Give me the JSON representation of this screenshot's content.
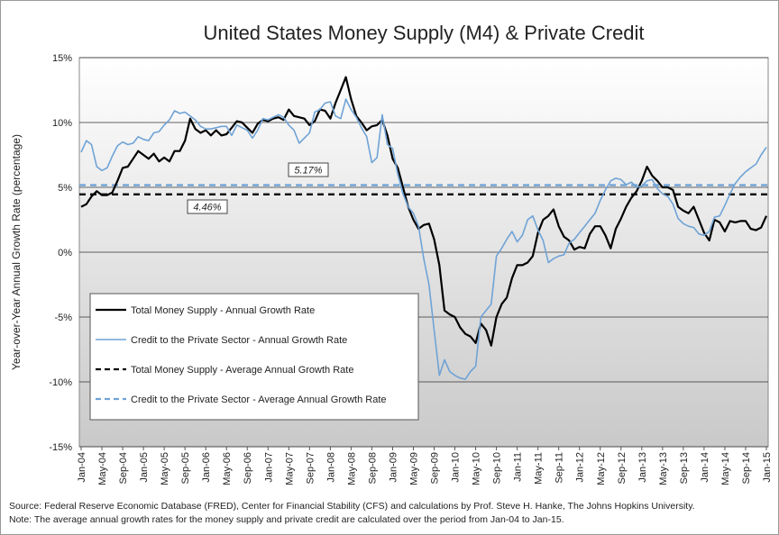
{
  "chart_data": {
    "type": "line",
    "title": "United States Money Supply (M4) & Private Credit",
    "y_label": "Year-over-Year Annual Growth Rate (percentage)",
    "notes": [
      "Source: Federal Reserve Economic Database (FRED), Center for Financial Stability (CFS) and calculations by Prof. Steve H. Hanke, The Johns Hopkins University.",
      "Note: The average annual growth rates for the money supply and private credit are calculated over the period from Jan-04 to Jan-15."
    ],
    "categories": [
      "Jan-04",
      null,
      null,
      null,
      "May-04",
      null,
      null,
      null,
      "Sep-04",
      null,
      null,
      null,
      "Jan-05",
      null,
      null,
      null,
      "May-05",
      null,
      null,
      null,
      "Sep-05",
      null,
      null,
      null,
      "Jan-06",
      null,
      null,
      null,
      "May-06",
      null,
      null,
      null,
      "Sep-06",
      null,
      null,
      null,
      "Jan-07",
      null,
      null,
      null,
      "May-07",
      null,
      null,
      null,
      "Sep-07",
      null,
      null,
      null,
      "Jan-08",
      null,
      null,
      null,
      "May-08",
      null,
      null,
      null,
      "Sep-08",
      null,
      null,
      null,
      "Jan-09",
      null,
      null,
      null,
      "May-09",
      null,
      null,
      null,
      "Sep-09",
      null,
      null,
      null,
      "Jan-10",
      null,
      null,
      null,
      "May-10",
      null,
      null,
      null,
      "Sep-10",
      null,
      null,
      null,
      "Jan-11",
      null,
      null,
      null,
      "May-11",
      null,
      null,
      null,
      "Sep-11",
      null,
      null,
      null,
      "Jan-12",
      null,
      null,
      null,
      "May-12",
      null,
      null,
      null,
      "Sep-12",
      null,
      null,
      null,
      "Jan-13",
      null,
      null,
      null,
      "May-13",
      null,
      null,
      null,
      "Sep-13",
      null,
      null,
      null,
      "Jan-14",
      null,
      null,
      null,
      "May-14",
      null,
      null,
      null,
      "Sep-14",
      null,
      null,
      null,
      "Jan-15"
    ],
    "series": [
      {
        "name": "Total Money Supply - Annual Growth Rate",
        "color": "#000000",
        "width": 2.2,
        "values": [
          3.5,
          3.7,
          4.3,
          4.7,
          4.4,
          4.4,
          4.6,
          5.5,
          6.5,
          6.6,
          7.2,
          7.8,
          7.5,
          7.2,
          7.6,
          7.0,
          7.3,
          7.0,
          7.8,
          7.8,
          8.6,
          10.3,
          9.5,
          9.2,
          9.4,
          9.0,
          9.4,
          9.0,
          9.1,
          9.6,
          10.1,
          10.0,
          9.6,
          9.2,
          9.9,
          10.2,
          10.1,
          10.3,
          10.4,
          10.2,
          11.0,
          10.5,
          10.4,
          10.3,
          9.8,
          10.1,
          11.0,
          10.9,
          10.3,
          11.5,
          12.5,
          13.5,
          11.8,
          10.5,
          10.0,
          9.4,
          9.7,
          9.8,
          10.2,
          9.0,
          7.2,
          6.5,
          5.0,
          3.5,
          2.5,
          1.8,
          2.1,
          2.2,
          1.0,
          -1.0,
          -4.5,
          -4.8,
          -5.0,
          -5.8,
          -6.3,
          -6.5,
          -7.0,
          -5.5,
          -6.0,
          -7.2,
          -5.0,
          -4.0,
          -3.5,
          -2.0,
          -1.0,
          -1.0,
          -0.8,
          -0.3,
          1.5,
          2.5,
          2.8,
          3.3,
          2.0,
          1.2,
          0.9,
          0.2,
          0.4,
          0.3,
          1.4,
          2.0,
          2.0,
          1.3,
          0.3,
          1.8,
          2.6,
          3.5,
          4.2,
          4.7,
          5.5,
          6.6,
          5.9,
          5.5,
          5.0,
          5.0,
          4.8,
          3.5,
          3.2,
          3.0,
          3.5,
          2.5,
          1.5,
          0.9,
          2.5,
          2.3,
          1.6,
          2.4,
          2.3,
          2.4,
          2.4,
          1.8,
          1.7,
          1.9,
          2.8
        ]
      },
      {
        "name": "Credit to the Private Sector - Annual Growth Rate",
        "color": "#6fa3d6",
        "width": 1.6,
        "values": [
          7.7,
          8.6,
          8.3,
          6.6,
          6.3,
          6.5,
          7.4,
          8.2,
          8.5,
          8.3,
          8.4,
          8.9,
          8.7,
          8.6,
          9.2,
          9.3,
          9.8,
          10.2,
          10.9,
          10.7,
          10.8,
          10.5,
          10.2,
          9.7,
          9.5,
          9.5,
          9.6,
          9.7,
          9.7,
          9.0,
          9.8,
          9.6,
          9.4,
          8.8,
          9.4,
          10.3,
          10.2,
          10.4,
          10.6,
          10.4,
          9.8,
          9.4,
          8.4,
          8.8,
          9.2,
          10.8,
          11.0,
          11.5,
          11.6,
          10.5,
          10.3,
          11.8,
          11.0,
          10.4,
          9.6,
          8.9,
          6.9,
          7.3,
          10.6,
          8.3,
          8.0,
          6.0,
          4.5,
          3.5,
          3.0,
          2.0,
          -0.5,
          -2.5,
          -6.0,
          -9.5,
          -8.3,
          -9.2,
          -9.5,
          -9.7,
          -9.8,
          -9.2,
          -8.8,
          -5.0,
          -4.5,
          -4.0,
          -0.3,
          0.3,
          1.0,
          1.6,
          0.8,
          1.3,
          2.5,
          2.8,
          1.7,
          0.9,
          -0.8,
          -0.5,
          -0.3,
          -0.2,
          0.7,
          1.0,
          1.5,
          2.0,
          2.5,
          3.0,
          4.0,
          4.8,
          5.5,
          5.7,
          5.6,
          5.2,
          5.4,
          5.0,
          5.1,
          5.5,
          5.6,
          4.9,
          4.5,
          4.3,
          3.7,
          2.6,
          2.2,
          2.0,
          1.9,
          1.4,
          1.3,
          1.6,
          2.7,
          2.8,
          3.6,
          4.5,
          5.3,
          5.8,
          6.2,
          6.5,
          6.8,
          7.5,
          8.1
        ]
      }
    ],
    "average_lines": [
      {
        "name": "Total Money Supply - Average Annual Growth Rate",
        "color": "#000000",
        "value": 4.46,
        "label": "4.46%"
      },
      {
        "name": "Credit to the Private Sector - Average Annual Growth Rate",
        "color": "#6fa3d6",
        "value": 5.17,
        "label": "5.17%"
      }
    ],
    "ylim": [
      -15,
      15
    ],
    "yticks": [
      {
        "value": -15,
        "label": "-15%"
      },
      {
        "value": -10,
        "label": "-10%"
      },
      {
        "value": -5,
        "label": "-5%"
      },
      {
        "value": 0,
        "label": "0%"
      },
      {
        "value": 5,
        "label": "5%"
      },
      {
        "value": 10,
        "label": "10%"
      },
      {
        "value": 15,
        "label": "15%"
      }
    ],
    "grid": true
  }
}
